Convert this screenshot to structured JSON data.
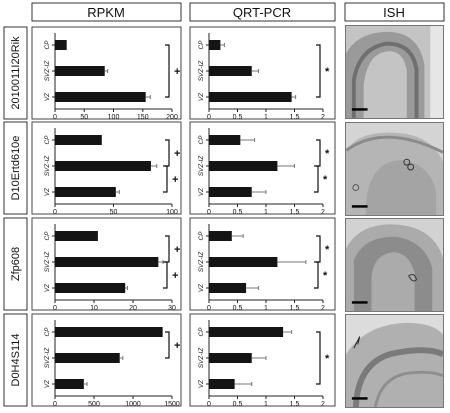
{
  "headers": {
    "rpkm": "RPKM",
    "qrtpcr": "QRT-PCR",
    "ish": "ISH"
  },
  "chart_data": [
    {
      "type": "bar",
      "orientation": "horizontal",
      "gene": "2010011I20Rik",
      "method": "RPKM",
      "categories": [
        "CP",
        "SVZ-IZ",
        "VZ"
      ],
      "values": [
        20,
        85,
        155
      ],
      "errors": [
        0,
        5,
        8
      ],
      "xlim": [
        0,
        200
      ],
      "xticks": [
        "0",
        "50",
        "100",
        "150",
        "200"
      ],
      "significance": [
        {
          "from": "CP",
          "to": "VZ",
          "symbol": "+"
        }
      ]
    },
    {
      "type": "bar",
      "orientation": "horizontal",
      "gene": "2010011I20Rik",
      "method": "QRT-PCR",
      "categories": [
        "CP",
        "SVZ-IZ",
        "VZ"
      ],
      "values": [
        0.2,
        0.75,
        1.45
      ],
      "errors": [
        0.07,
        0.12,
        0.07
      ],
      "xlim": [
        0,
        2
      ],
      "xticks": [
        "0",
        "0.5",
        "1",
        "1.5",
        "2"
      ],
      "significance": [
        {
          "from": "CP",
          "to": "VZ",
          "symbol": "*"
        }
      ]
    },
    {
      "type": "bar",
      "orientation": "horizontal",
      "gene": "D10Ertd610e",
      "method": "RPKM",
      "categories": [
        "CP",
        "SVZ-IZ",
        "VZ"
      ],
      "values": [
        40,
        82,
        52
      ],
      "errors": [
        0,
        5,
        3
      ],
      "xlim": [
        0,
        100
      ],
      "xticks": [
        "0",
        "50",
        "100"
      ],
      "significance": [
        {
          "from": "CP",
          "to": "SVZ-IZ",
          "symbol": "+"
        },
        {
          "from": "SVZ-IZ",
          "to": "VZ",
          "symbol": "+"
        }
      ]
    },
    {
      "type": "bar",
      "orientation": "horizontal",
      "gene": "D10Ertd610e",
      "method": "QRT-PCR",
      "categories": [
        "CP",
        "SVZ-IZ",
        "VZ"
      ],
      "values": [
        0.55,
        1.2,
        0.75
      ],
      "errors": [
        0.25,
        0.3,
        0.25
      ],
      "xlim": [
        0,
        2
      ],
      "xticks": [
        "0",
        "0.5",
        "1",
        "1.5",
        "2"
      ],
      "significance": [
        {
          "from": "CP",
          "to": "SVZ-IZ",
          "symbol": "*"
        },
        {
          "from": "SVZ-IZ",
          "to": "VZ",
          "symbol": "*"
        }
      ]
    },
    {
      "type": "bar",
      "orientation": "horizontal",
      "gene": "Zfp608",
      "method": "RPKM",
      "categories": [
        "CP",
        "SVZ-IZ",
        "VZ"
      ],
      "values": [
        11,
        26.5,
        18
      ],
      "errors": [
        0,
        1.2,
        0.6
      ],
      "xlim": [
        0,
        30
      ],
      "xticks": [
        "0",
        "10",
        "20",
        "30"
      ],
      "significance": [
        {
          "from": "CP",
          "to": "SVZ-IZ",
          "symbol": "+"
        },
        {
          "from": "SVZ-IZ",
          "to": "VZ",
          "symbol": "+"
        }
      ]
    },
    {
      "type": "bar",
      "orientation": "horizontal",
      "gene": "Zfp608",
      "method": "QRT-PCR",
      "categories": [
        "CP",
        "SVZ-IZ",
        "VZ"
      ],
      "values": [
        0.4,
        1.2,
        0.65
      ],
      "errors": [
        0.2,
        0.5,
        0.22
      ],
      "xlim": [
        0,
        2
      ],
      "xticks": [
        "0",
        "0.5",
        "1",
        "1.5",
        "2"
      ],
      "significance": [
        {
          "from": "CP",
          "to": "SVZ-IZ",
          "symbol": "*"
        },
        {
          "from": "SVZ-IZ",
          "to": "VZ",
          "symbol": "*"
        }
      ]
    },
    {
      "type": "bar",
      "orientation": "horizontal",
      "gene": "D0H4S114",
      "method": "RPKM",
      "categories": [
        "CP",
        "SVZ-IZ",
        "VZ"
      ],
      "values": [
        1380,
        830,
        370
      ],
      "errors": [
        0,
        40,
        40
      ],
      "xlim": [
        0,
        1500
      ],
      "xticks": [
        "0",
        "500",
        "1000",
        "1500"
      ],
      "significance": [
        {
          "from": "CP",
          "to": "SVZ-IZ",
          "symbol": "+"
        }
      ]
    },
    {
      "type": "bar",
      "orientation": "horizontal",
      "gene": "D0H4S114",
      "method": "QRT-PCR",
      "categories": [
        "CP",
        "SVZ-IZ",
        "VZ"
      ],
      "values": [
        1.3,
        0.75,
        0.45
      ],
      "errors": [
        0.15,
        0.25,
        0.3
      ],
      "xlim": [
        0,
        2
      ],
      "xticks": [
        "0",
        "0.5",
        "1",
        "1.5",
        "2"
      ],
      "significance": [
        {
          "from": "CP",
          "to": "VZ",
          "symbol": "*"
        }
      ]
    }
  ]
}
